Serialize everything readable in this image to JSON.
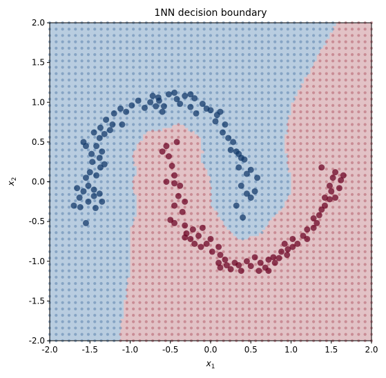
{
  "chart_data": {
    "type": "scatter",
    "title": "1NN decision boundary",
    "xlabel": "x",
    "xlabel_sub": "1",
    "ylabel": "x",
    "ylabel_sub": "2",
    "xlim": [
      -2.0,
      2.0
    ],
    "ylim": [
      -2.0,
      2.0
    ],
    "xticks": [
      "-2.0",
      "-1.5",
      "-1.0",
      "-0.5",
      "0.0",
      "0.5",
      "1.0",
      "1.5",
      "2.0"
    ],
    "yticks": [
      "-2.0",
      "-1.5",
      "-1.0",
      "-0.5",
      "0.0",
      "0.5",
      "1.0",
      "1.5",
      "2.0"
    ],
    "grid": false,
    "legend": "none",
    "colors": {
      "class0_region": "#b9cde0",
      "class1_region": "#e2c2c6",
      "class0_grid_dot": "#5d84ad",
      "class1_grid_dot": "#b4606e",
      "class0_point": "#0f3667",
      "class1_point": "#6a0021"
    },
    "grid_points": {
      "xmin": -2.0,
      "xmax": 2.0,
      "ymin": -2.0,
      "ymax": 2.0,
      "step": 0.08
    },
    "series": [
      {
        "class": 0,
        "points": [
          [
            -1.55,
            -0.52
          ],
          [
            -1.62,
            -0.32
          ],
          [
            -1.7,
            -0.3
          ],
          [
            -1.63,
            -0.2
          ],
          [
            -1.52,
            -0.25
          ],
          [
            -1.43,
            -0.33
          ],
          [
            -1.45,
            -0.18
          ],
          [
            -1.58,
            -0.12
          ],
          [
            -1.66,
            -0.08
          ],
          [
            -1.52,
            -0.05
          ],
          [
            -1.45,
            -0.1
          ],
          [
            -1.38,
            -0.15
          ],
          [
            -1.35,
            -0.25
          ],
          [
            -1.55,
            0.05
          ],
          [
            -1.42,
            0.08
          ],
          [
            -1.5,
            0.12
          ],
          [
            -1.37,
            0.18
          ],
          [
            -1.47,
            0.25
          ],
          [
            -1.38,
            0.3
          ],
          [
            -1.48,
            0.35
          ],
          [
            -1.55,
            0.45
          ],
          [
            -1.42,
            0.45
          ],
          [
            -1.35,
            0.38
          ],
          [
            -1.32,
            0.22
          ],
          [
            -1.58,
            0.5
          ],
          [
            -1.38,
            0.55
          ],
          [
            -1.32,
            0.6
          ],
          [
            -1.45,
            0.62
          ],
          [
            -1.37,
            0.68
          ],
          [
            -1.25,
            0.65
          ],
          [
            -1.22,
            0.72
          ],
          [
            -1.3,
            0.78
          ],
          [
            -1.1,
            0.72
          ],
          [
            -1.2,
            0.86
          ],
          [
            -1.05,
            0.88
          ],
          [
            -1.12,
            0.92
          ],
          [
            -0.98,
            0.96
          ],
          [
            -0.9,
            1.02
          ],
          [
            -0.82,
            0.93
          ],
          [
            -0.72,
            1.08
          ],
          [
            -0.75,
            1.0
          ],
          [
            -0.64,
            1.02
          ],
          [
            -0.58,
            0.95
          ],
          [
            -0.52,
            1.1
          ],
          [
            -0.45,
            1.12
          ],
          [
            -0.42,
            1.04
          ],
          [
            -0.38,
            0.98
          ],
          [
            -0.32,
            1.08
          ],
          [
            -0.25,
            1.1
          ],
          [
            -0.2,
            1.05
          ],
          [
            -0.25,
            0.94
          ],
          [
            -0.18,
            0.86
          ],
          [
            -0.1,
            0.98
          ],
          [
            -0.05,
            0.92
          ],
          [
            0.0,
            0.9
          ],
          [
            0.08,
            0.84
          ],
          [
            0.12,
            0.88
          ],
          [
            0.06,
            0.76
          ],
          [
            0.18,
            0.72
          ],
          [
            0.15,
            0.62
          ],
          [
            0.22,
            0.55
          ],
          [
            0.28,
            0.5
          ],
          [
            0.25,
            0.4
          ],
          [
            0.32,
            0.38
          ],
          [
            0.38,
            0.3
          ],
          [
            0.35,
            0.18
          ],
          [
            0.42,
            0.28
          ],
          [
            0.5,
            0.15
          ],
          [
            0.45,
            0.1
          ],
          [
            0.58,
            0.05
          ],
          [
            0.38,
            -0.05
          ],
          [
            0.45,
            -0.15
          ],
          [
            0.55,
            -0.12
          ],
          [
            0.5,
            -0.2
          ],
          [
            0.32,
            -0.3
          ],
          [
            0.4,
            -0.45
          ],
          [
            -0.6,
            0.88
          ],
          [
            -0.65,
            1.06
          ],
          [
            -0.68,
            0.95
          ],
          [
            0.35,
            0.35
          ]
        ]
      },
      {
        "class": 1,
        "points": [
          [
            -0.55,
            0.45
          ],
          [
            -0.42,
            0.5
          ],
          [
            -0.52,
            0.32
          ],
          [
            -0.48,
            0.2
          ],
          [
            -0.45,
            0.08
          ],
          [
            -0.55,
            0.0
          ],
          [
            -0.45,
            -0.02
          ],
          [
            -0.38,
            -0.05
          ],
          [
            -0.4,
            -0.18
          ],
          [
            -0.32,
            -0.25
          ],
          [
            -0.45,
            -0.3
          ],
          [
            -0.35,
            -0.38
          ],
          [
            -0.5,
            -0.48
          ],
          [
            -0.45,
            -0.52
          ],
          [
            -0.32,
            -0.55
          ],
          [
            -0.3,
            -0.65
          ],
          [
            -0.32,
            -0.7
          ],
          [
            -0.22,
            -0.6
          ],
          [
            -0.15,
            -0.68
          ],
          [
            -0.25,
            -0.72
          ],
          [
            -0.2,
            -0.78
          ],
          [
            -0.12,
            -0.82
          ],
          [
            -0.05,
            -0.78
          ],
          [
            0.02,
            -0.88
          ],
          [
            0.1,
            -0.82
          ],
          [
            0.12,
            -0.92
          ],
          [
            0.18,
            -0.98
          ],
          [
            0.1,
            -1.02
          ],
          [
            0.12,
            -1.08
          ],
          [
            0.2,
            -1.05
          ],
          [
            0.25,
            -1.1
          ],
          [
            0.3,
            -1.02
          ],
          [
            0.35,
            -1.05
          ],
          [
            0.38,
            -1.12
          ],
          [
            0.45,
            -1.0
          ],
          [
            0.5,
            -1.06
          ],
          [
            0.55,
            -0.95
          ],
          [
            0.62,
            -1.02
          ],
          [
            0.68,
            -1.08
          ],
          [
            0.72,
            -0.98
          ],
          [
            0.72,
            -1.12
          ],
          [
            0.8,
            -1.02
          ],
          [
            0.85,
            -0.96
          ],
          [
            0.88,
            -0.88
          ],
          [
            0.96,
            -0.85
          ],
          [
            0.92,
            -0.78
          ],
          [
            1.02,
            -0.82
          ],
          [
            1.08,
            -0.78
          ],
          [
            1.02,
            -0.72
          ],
          [
            1.15,
            -0.68
          ],
          [
            1.2,
            -0.72
          ],
          [
            1.2,
            -0.6
          ],
          [
            1.28,
            -0.58
          ],
          [
            1.28,
            -0.46
          ],
          [
            1.32,
            -0.52
          ],
          [
            1.35,
            -0.42
          ],
          [
            1.38,
            -0.35
          ],
          [
            1.42,
            -0.3
          ],
          [
            1.42,
            -0.2
          ],
          [
            1.48,
            -0.22
          ],
          [
            1.5,
            -0.12
          ],
          [
            1.55,
            -0.2
          ],
          [
            1.48,
            -0.05
          ],
          [
            1.52,
            0.05
          ],
          [
            1.55,
            0.12
          ],
          [
            1.62,
            0.02
          ],
          [
            1.6,
            -0.08
          ],
          [
            1.65,
            0.08
          ],
          [
            1.38,
            0.18
          ],
          [
            -0.1,
            -0.58
          ],
          [
            -0.6,
            0.38
          ],
          [
            0.0,
            -0.72
          ],
          [
            0.78,
            -0.95
          ],
          [
            0.95,
            -0.92
          ],
          [
            0.6,
            -1.12
          ]
        ]
      }
    ]
  }
}
